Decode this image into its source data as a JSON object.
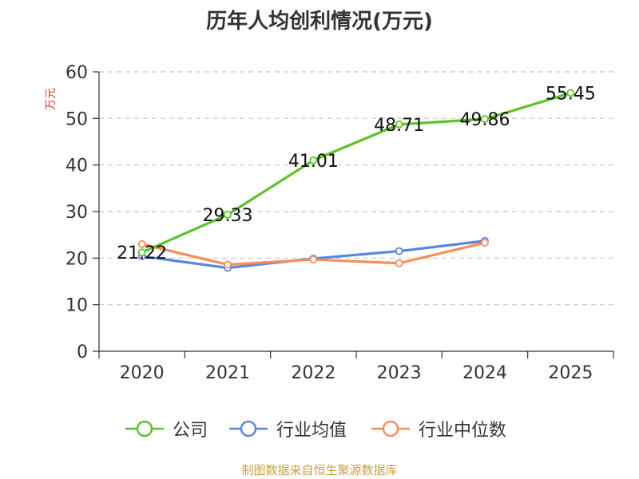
{
  "title": "历年人均创利情况(万元)",
  "source": "制图数据来自恒生聚源数据库",
  "colors": {
    "company": "#5cc22a",
    "industry_avg": "#5b86dd",
    "industry_median": "#f48f5c",
    "grid": "#c8c8c8",
    "axis": "#333333",
    "ylabel": "#e03a3a"
  },
  "legend": [
    {
      "key": "company",
      "label": "公司"
    },
    {
      "key": "industry_avg",
      "label": "行业均值"
    },
    {
      "key": "industry_median",
      "label": "行业中位数"
    }
  ],
  "chart_data": {
    "type": "line",
    "title": "历年人均创利情况(万元)",
    "xlabel": "",
    "ylabel": "万元",
    "categories": [
      "2020",
      "2021",
      "2022",
      "2023",
      "2024",
      "2025"
    ],
    "ylim": [
      0,
      60
    ],
    "yticks": [
      0,
      10,
      20,
      30,
      40,
      50,
      60
    ],
    "grid": true,
    "legend_position": "bottom",
    "series": [
      {
        "key": "company",
        "name": "公司",
        "values": [
          21.22,
          29.33,
          41.01,
          48.71,
          49.86,
          55.45
        ],
        "labels": [
          "21.22",
          "29.33",
          "41.01",
          "48.71",
          "49.86",
          "55.45"
        ]
      },
      {
        "key": "industry_avg",
        "name": "行业均值",
        "values": [
          20.4,
          17.9,
          19.9,
          21.5,
          23.7,
          null
        ]
      },
      {
        "key": "industry_median",
        "name": "行业中位数",
        "values": [
          23.0,
          18.6,
          19.7,
          18.9,
          23.3,
          null
        ]
      }
    ]
  }
}
